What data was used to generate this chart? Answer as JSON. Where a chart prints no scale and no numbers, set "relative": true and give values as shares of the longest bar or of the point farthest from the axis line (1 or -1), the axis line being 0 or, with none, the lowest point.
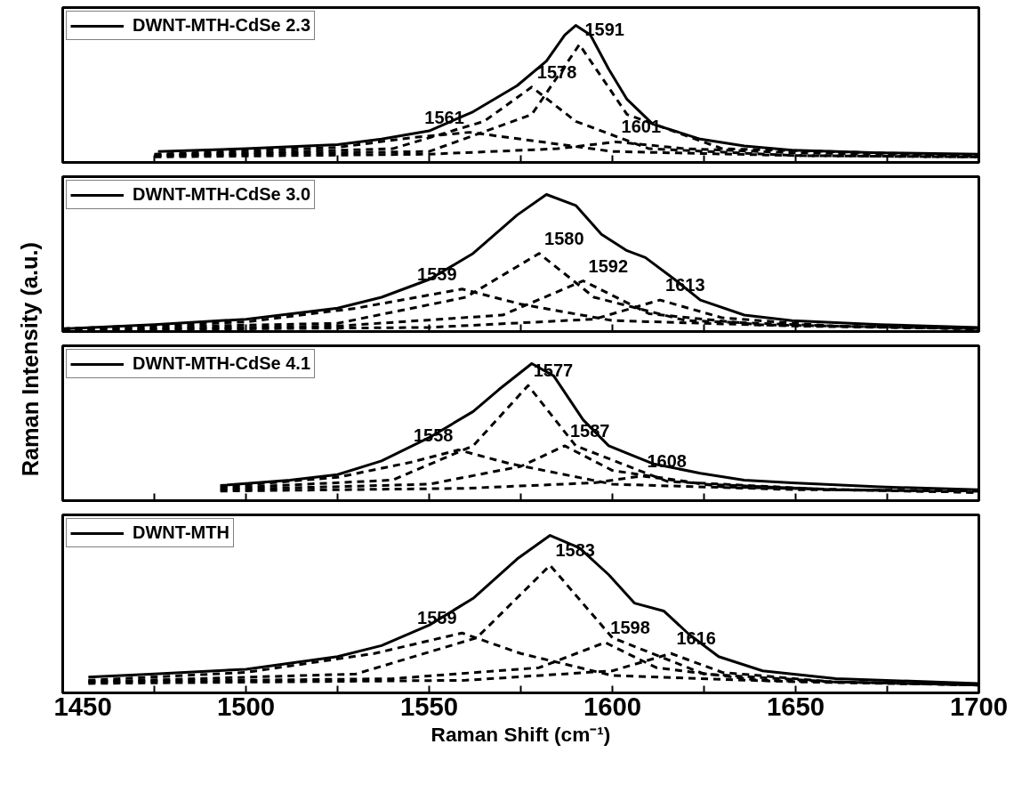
{
  "chart_data": [
    {
      "type": "line",
      "relative": true,
      "ylabel": "Raman Intensity (a.u.)",
      "xlim": [
        1450,
        1700
      ],
      "xticks": [
        {
          "value": 1450,
          "label": null
        },
        {
          "value": 1475,
          "label": null
        },
        {
          "value": 1500,
          "label": null
        },
        {
          "value": 1525,
          "label": null
        },
        {
          "value": 1550,
          "label": null
        },
        {
          "value": 1575,
          "label": null
        },
        {
          "value": 1600,
          "label": null
        },
        {
          "value": 1625,
          "label": null
        },
        {
          "value": 1650,
          "label": null
        },
        {
          "value": 1675,
          "label": null
        },
        {
          "value": 1700,
          "label": null
        }
      ],
      "tick_labels": false,
      "grid": false,
      "legend": "top left",
      "series": [
        {
          "name": "DWNT-MTH-CdSe 2.3",
          "color": "#000000",
          "line_style": "solid",
          "x": [
            1476,
            1500,
            1525,
            1537,
            1550,
            1562,
            1574,
            1582,
            1587,
            1590,
            1594,
            1599,
            1604,
            1611,
            1624,
            1636,
            1649,
            1673,
            1700
          ],
          "values": [
            0.08,
            0.1,
            0.13,
            0.17,
            0.23,
            0.37,
            0.56,
            0.74,
            0.93,
            1.0,
            0.93,
            0.68,
            0.46,
            0.28,
            0.17,
            0.12,
            0.09,
            0.07,
            0.06
          ]
        },
        {
          "color": "#000000",
          "line_style": "dashed",
          "x": [
            1475,
            1525,
            1545,
            1561,
            1575,
            1600,
            1650,
            1700
          ],
          "values": [
            0.06,
            0.11,
            0.18,
            0.22,
            0.17,
            0.08,
            0.05,
            0.04
          ]
        },
        {
          "color": "#000000",
          "line_style": "dashed",
          "x": [
            1475,
            1540,
            1565,
            1578,
            1590,
            1610,
            1650,
            1700
          ],
          "values": [
            0.05,
            0.1,
            0.3,
            0.55,
            0.3,
            0.1,
            0.05,
            0.04
          ]
        },
        {
          "color": "#000000",
          "line_style": "dashed",
          "x": [
            1475,
            1550,
            1578,
            1591,
            1604,
            1630,
            1700
          ],
          "values": [
            0.05,
            0.08,
            0.35,
            0.86,
            0.35,
            0.1,
            0.05
          ]
        },
        {
          "color": "#000000",
          "line_style": "dashed",
          "x": [
            1475,
            1550,
            1585,
            1601,
            1620,
            1650,
            1700
          ],
          "values": [
            0.04,
            0.06,
            0.1,
            0.15,
            0.1,
            0.07,
            0.05
          ]
        }
      ],
      "annotations": [
        "1561",
        "1578",
        "1591",
        "1601"
      ]
    },
    {
      "type": "line",
      "relative": true,
      "xlim": [
        1450,
        1700
      ],
      "xticks": [
        {
          "value": 1450,
          "label": null
        },
        {
          "value": 1475,
          "label": null
        },
        {
          "value": 1500,
          "label": null
        },
        {
          "value": 1525,
          "label": null
        },
        {
          "value": 1550,
          "label": null
        },
        {
          "value": 1575,
          "label": null
        },
        {
          "value": 1600,
          "label": null
        },
        {
          "value": 1625,
          "label": null
        },
        {
          "value": 1650,
          "label": null
        },
        {
          "value": 1675,
          "label": null
        },
        {
          "value": 1700,
          "label": null
        }
      ],
      "tick_labels": false,
      "grid": false,
      "legend": "top left",
      "series": [
        {
          "name": "DWNT-MTH-CdSe 3.0",
          "color": "#000000",
          "line_style": "solid",
          "x": [
            1450,
            1475,
            1500,
            1525,
            1537,
            1550,
            1562,
            1574,
            1582,
            1590,
            1597,
            1604,
            1609,
            1617,
            1624,
            1636,
            1649,
            1673,
            1700
          ],
          "values": [
            0.02,
            0.05,
            0.09,
            0.17,
            0.25,
            0.38,
            0.57,
            0.85,
            1.0,
            0.92,
            0.71,
            0.59,
            0.54,
            0.38,
            0.23,
            0.12,
            0.08,
            0.05,
            0.03
          ]
        },
        {
          "color": "#000000",
          "line_style": "dashed",
          "x": [
            1450,
            1500,
            1530,
            1559,
            1575,
            1600,
            1650,
            1700
          ],
          "values": [
            0.02,
            0.07,
            0.17,
            0.31,
            0.2,
            0.08,
            0.04,
            0.02
          ]
        },
        {
          "color": "#000000",
          "line_style": "dashed",
          "x": [
            1450,
            1525,
            1560,
            1580,
            1595,
            1620,
            1660,
            1700
          ],
          "values": [
            0.02,
            0.06,
            0.25,
            0.57,
            0.25,
            0.08,
            0.04,
            0.02
          ]
        },
        {
          "color": "#000000",
          "line_style": "dashed",
          "x": [
            1450,
            1525,
            1570,
            1592,
            1610,
            1640,
            1700
          ],
          "values": [
            0.01,
            0.04,
            0.12,
            0.37,
            0.13,
            0.05,
            0.02
          ]
        },
        {
          "color": "#000000",
          "line_style": "dashed",
          "x": [
            1450,
            1550,
            1595,
            1613,
            1630,
            1660,
            1700
          ],
          "values": [
            0.01,
            0.03,
            0.09,
            0.23,
            0.1,
            0.04,
            0.02
          ]
        }
      ],
      "annotations": [
        "1559",
        "1580",
        "1592",
        "1613"
      ]
    },
    {
      "type": "line",
      "relative": true,
      "xlim": [
        1450,
        1700
      ],
      "xticks": [
        {
          "value": 1450,
          "label": null
        },
        {
          "value": 1475,
          "label": null
        },
        {
          "value": 1500,
          "label": null
        },
        {
          "value": 1525,
          "label": null
        },
        {
          "value": 1550,
          "label": null
        },
        {
          "value": 1575,
          "label": null
        },
        {
          "value": 1600,
          "label": null
        },
        {
          "value": 1625,
          "label": null
        },
        {
          "value": 1650,
          "label": null
        },
        {
          "value": 1675,
          "label": null
        },
        {
          "value": 1700,
          "label": null
        }
      ],
      "tick_labels": false,
      "grid": false,
      "legend": "top left",
      "series": [
        {
          "name": "DWNT-MTH-CdSe 4.1",
          "color": "#000000",
          "line_style": "solid",
          "x": [
            1493,
            1512,
            1525,
            1537,
            1550,
            1562,
            1569,
            1578,
            1584,
            1592,
            1599,
            1611,
            1624,
            1636,
            1649,
            1673,
            1700
          ],
          "values": [
            0.11,
            0.15,
            0.19,
            0.29,
            0.46,
            0.65,
            0.81,
            1.0,
            0.91,
            0.59,
            0.4,
            0.27,
            0.2,
            0.15,
            0.13,
            0.1,
            0.08
          ]
        },
        {
          "color": "#000000",
          "line_style": "dashed",
          "x": [
            1493,
            1525,
            1545,
            1558,
            1572,
            1600,
            1650,
            1700
          ],
          "values": [
            0.1,
            0.17,
            0.28,
            0.37,
            0.27,
            0.12,
            0.08,
            0.07
          ]
        },
        {
          "color": "#000000",
          "line_style": "dashed",
          "x": [
            1493,
            1540,
            1562,
            1577,
            1590,
            1615,
            1660,
            1700
          ],
          "values": [
            0.09,
            0.15,
            0.4,
            0.84,
            0.4,
            0.14,
            0.08,
            0.07
          ]
        },
        {
          "color": "#000000",
          "line_style": "dashed",
          "x": [
            1493,
            1550,
            1575,
            1587,
            1600,
            1630,
            1700
          ],
          "values": [
            0.08,
            0.12,
            0.25,
            0.4,
            0.22,
            0.1,
            0.06
          ]
        },
        {
          "color": "#000000",
          "line_style": "dashed",
          "x": [
            1493,
            1560,
            1595,
            1608,
            1625,
            1660,
            1700
          ],
          "values": [
            0.07,
            0.09,
            0.13,
            0.18,
            0.12,
            0.08,
            0.06
          ]
        }
      ],
      "annotations": [
        "1558",
        "1577",
        "1587",
        "1608"
      ]
    },
    {
      "type": "line",
      "relative": true,
      "xlabel": "Raman Shift (cm⁻¹)",
      "xlim": [
        1450,
        1700
      ],
      "xticks": [
        1450,
        {
          "value": 1475,
          "label": null
        },
        1500,
        {
          "value": 1525,
          "label": null
        },
        1550,
        {
          "value": 1575,
          "label": null
        },
        1600,
        {
          "value": 1625,
          "label": null
        },
        1650,
        {
          "value": 1675,
          "label": null
        },
        1700
      ],
      "tick_labels": "x",
      "grid": false,
      "legend": "top left",
      "series": [
        {
          "name": "DWNT-MTH",
          "color": "#000000",
          "line_style": "solid",
          "x": [
            1457,
            1475,
            1500,
            1525,
            1537,
            1550,
            1562,
            1574,
            1583,
            1591,
            1599,
            1606,
            1614,
            1621,
            1629,
            1641,
            1661,
            1700
          ],
          "values": [
            0.1,
            0.12,
            0.15,
            0.23,
            0.3,
            0.43,
            0.6,
            0.85,
            1.0,
            0.92,
            0.75,
            0.57,
            0.52,
            0.37,
            0.23,
            0.14,
            0.09,
            0.06
          ]
        },
        {
          "color": "#000000",
          "line_style": "dashed",
          "x": [
            1457,
            1500,
            1535,
            1559,
            1575,
            1600,
            1650,
            1700
          ],
          "values": [
            0.08,
            0.13,
            0.25,
            0.38,
            0.25,
            0.11,
            0.07,
            0.05
          ]
        },
        {
          "color": "#000000",
          "line_style": "dashed",
          "x": [
            1457,
            1530,
            1563,
            1583,
            1600,
            1625,
            1660,
            1700
          ],
          "values": [
            0.07,
            0.12,
            0.35,
            0.81,
            0.35,
            0.12,
            0.07,
            0.05
          ]
        },
        {
          "color": "#000000",
          "line_style": "dashed",
          "x": [
            1457,
            1540,
            1580,
            1598,
            1612,
            1640,
            1700
          ],
          "values": [
            0.07,
            0.09,
            0.16,
            0.32,
            0.16,
            0.08,
            0.05
          ]
        },
        {
          "color": "#000000",
          "line_style": "dashed",
          "x": [
            1457,
            1560,
            1600,
            1616,
            1630,
            1660,
            1700
          ],
          "values": [
            0.06,
            0.08,
            0.14,
            0.25,
            0.13,
            0.07,
            0.05
          ]
        }
      ],
      "annotations": [
        "1559",
        "1583",
        "1598",
        "1616"
      ]
    }
  ]
}
